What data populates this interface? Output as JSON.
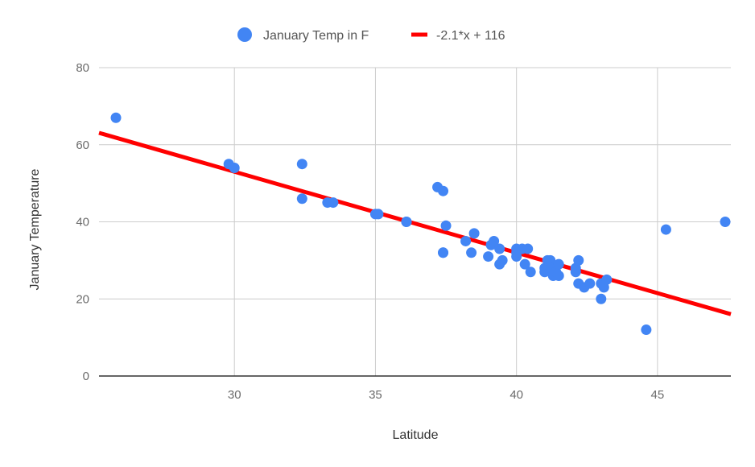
{
  "chart_data": {
    "type": "scatter",
    "xlabel": "Latitude",
    "ylabel": "January Temperature",
    "xlim": [
      25.2,
      47.6
    ],
    "ylim": [
      0,
      80
    ],
    "xticks": [
      30,
      35,
      40,
      45
    ],
    "yticks": [
      0,
      20,
      40,
      60,
      80
    ],
    "grid": true,
    "legend_position": "top",
    "colors": {
      "points": "#4285f4",
      "trendline": "#ff0000",
      "grid": "#cccccc",
      "axis": "#333333"
    },
    "series": [
      {
        "name": "January Temp in F",
        "kind": "points",
        "x": [
          25.8,
          29.8,
          30.0,
          32.4,
          32.4,
          33.3,
          33.5,
          35.0,
          35.1,
          36.1,
          36.1,
          37.2,
          37.4,
          37.5,
          37.4,
          37.4,
          38.2,
          38.4,
          38.5,
          39.0,
          39.1,
          39.2,
          39.4,
          39.4,
          39.5,
          40.0,
          40.0,
          40.0,
          40.2,
          40.3,
          40.4,
          40.5,
          41.0,
          41.0,
          41.1,
          41.2,
          41.2,
          41.3,
          41.4,
          41.5,
          41.5,
          42.1,
          42.1,
          42.2,
          42.2,
          42.4,
          42.6,
          43.0,
          43.0,
          43.1,
          43.2,
          44.6,
          45.3,
          47.4
        ],
        "y": [
          67,
          55,
          54,
          55,
          46,
          45,
          45,
          42,
          42,
          40,
          40,
          49,
          48,
          39,
          32,
          32,
          35,
          32,
          37,
          31,
          34,
          35,
          33,
          29,
          30,
          33,
          31,
          32,
          33,
          29,
          33,
          27,
          28,
          27,
          30,
          30,
          28,
          26,
          27,
          29,
          26,
          28,
          27,
          30,
          24,
          23,
          24,
          20,
          24,
          23,
          25,
          12,
          38,
          40
        ]
      },
      {
        "name": "-2.1*x + 116",
        "kind": "trendline",
        "slope": -2.1,
        "intercept": 116
      }
    ]
  }
}
